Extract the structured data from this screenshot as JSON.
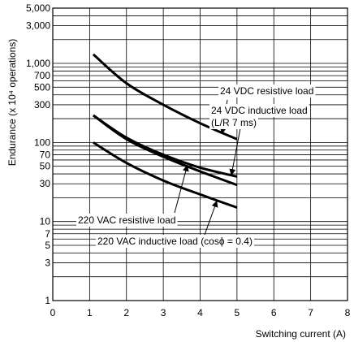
{
  "chart_data": {
    "type": "line",
    "xlabel": "Switching current (A)",
    "ylabel": "Endurance (x 10⁴ operations)",
    "xlim": [
      0,
      8
    ],
    "ylim": [
      1,
      5000
    ],
    "y_scale": "log",
    "grid": true,
    "x_ticks": [
      "0",
      "1",
      "2",
      "3",
      "4",
      "5",
      "6",
      "7",
      "8"
    ],
    "y_ticks": [
      {
        "value": 1,
        "label": "1"
      },
      {
        "value": 3,
        "label": "3"
      },
      {
        "value": 5,
        "label": "5"
      },
      {
        "value": 7,
        "label": "7"
      },
      {
        "value": 10,
        "label": "10"
      },
      {
        "value": 30,
        "label": "30"
      },
      {
        "value": 50,
        "label": "50"
      },
      {
        "value": 70,
        "label": "70"
      },
      {
        "value": 100,
        "label": "100"
      },
      {
        "value": 300,
        "label": "300"
      },
      {
        "value": 500,
        "label": "500"
      },
      {
        "value": 700,
        "label": "700"
      },
      {
        "value": 1000,
        "label": "1,000"
      },
      {
        "value": 3000,
        "label": "3,000"
      },
      {
        "value": 5000,
        "label": "5,000"
      }
    ],
    "series": [
      {
        "name": "24 VDC resistive load",
        "x": [
          1.1,
          2,
          3,
          4,
          5
        ],
        "y": [
          1300,
          560,
          300,
          175,
          110
        ]
      },
      {
        "name": "24 VDC inductive load (L/R 7 ms)",
        "x": [
          1.1,
          2,
          3,
          4,
          5
        ],
        "y": [
          220,
          115,
          70,
          48,
          37
        ]
      },
      {
        "name": "220 VAC resistive load",
        "x": [
          1.1,
          2,
          3,
          4,
          5
        ],
        "y": [
          220,
          110,
          66,
          43,
          29
        ]
      },
      {
        "name": "220 VAC inductive load (cosϕ = 0.4)",
        "x": [
          1.1,
          2,
          3,
          4,
          5
        ],
        "y": [
          100,
          55,
          33,
          22,
          15
        ]
      }
    ],
    "annotations": [
      {
        "text": "24 VDC resistive load",
        "target_series": 0
      },
      {
        "text": "24 VDC inductive load",
        "target_series": 1
      },
      {
        "text": "(L/R 7 ms)",
        "target_series": 1
      },
      {
        "text": "220 VAC resistive load",
        "target_series": 2
      },
      {
        "text": "220 VAC inductive load (cosϕ = 0.4)",
        "target_series": 3
      }
    ]
  }
}
